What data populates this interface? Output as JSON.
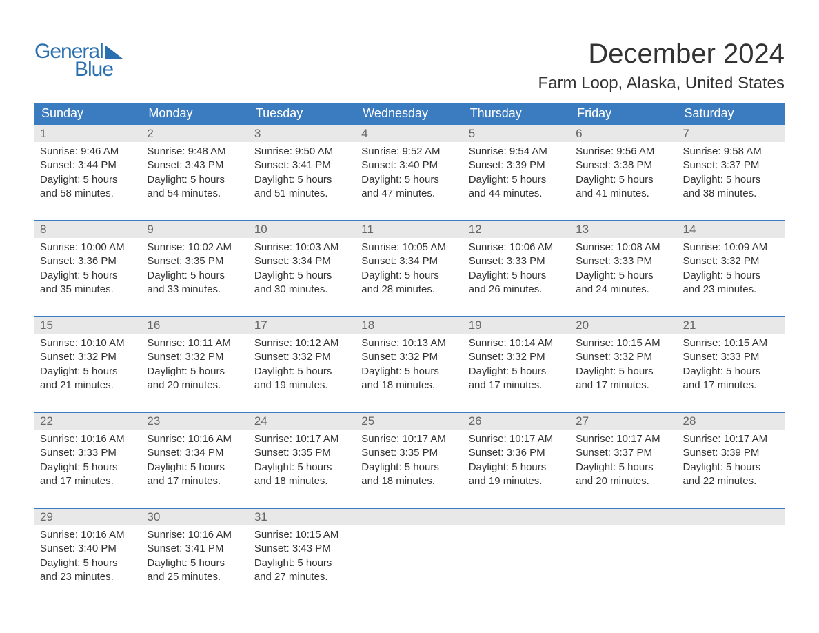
{
  "brand": {
    "line1": "General",
    "line2": "Blue",
    "icon_color": "#2a6fb0",
    "text_color": "#2a6fb0"
  },
  "title": "December 2024",
  "location": "Farm Loop, Alaska, United States",
  "colors": {
    "header_bg": "#3b7bbf",
    "header_text": "#ffffff",
    "daynum_bg": "#e8e8e8",
    "daynum_text": "#666666",
    "cell_border": "#3b7bbf",
    "body_text": "#333333",
    "page_bg": "#ffffff"
  },
  "typography": {
    "title_fontsize": 40,
    "location_fontsize": 24,
    "dayhead_fontsize": 18,
    "daynum_fontsize": 17,
    "body_fontsize": 15,
    "font_family": "Arial"
  },
  "day_headers": [
    "Sunday",
    "Monday",
    "Tuesday",
    "Wednesday",
    "Thursday",
    "Friday",
    "Saturday"
  ],
  "weeks": [
    [
      {
        "num": "1",
        "sunrise": "Sunrise: 9:46 AM",
        "sunset": "Sunset: 3:44 PM",
        "day1": "Daylight: 5 hours",
        "day2": "and 58 minutes."
      },
      {
        "num": "2",
        "sunrise": "Sunrise: 9:48 AM",
        "sunset": "Sunset: 3:43 PM",
        "day1": "Daylight: 5 hours",
        "day2": "and 54 minutes."
      },
      {
        "num": "3",
        "sunrise": "Sunrise: 9:50 AM",
        "sunset": "Sunset: 3:41 PM",
        "day1": "Daylight: 5 hours",
        "day2": "and 51 minutes."
      },
      {
        "num": "4",
        "sunrise": "Sunrise: 9:52 AM",
        "sunset": "Sunset: 3:40 PM",
        "day1": "Daylight: 5 hours",
        "day2": "and 47 minutes."
      },
      {
        "num": "5",
        "sunrise": "Sunrise: 9:54 AM",
        "sunset": "Sunset: 3:39 PM",
        "day1": "Daylight: 5 hours",
        "day2": "and 44 minutes."
      },
      {
        "num": "6",
        "sunrise": "Sunrise: 9:56 AM",
        "sunset": "Sunset: 3:38 PM",
        "day1": "Daylight: 5 hours",
        "day2": "and 41 minutes."
      },
      {
        "num": "7",
        "sunrise": "Sunrise: 9:58 AM",
        "sunset": "Sunset: 3:37 PM",
        "day1": "Daylight: 5 hours",
        "day2": "and 38 minutes."
      }
    ],
    [
      {
        "num": "8",
        "sunrise": "Sunrise: 10:00 AM",
        "sunset": "Sunset: 3:36 PM",
        "day1": "Daylight: 5 hours",
        "day2": "and 35 minutes."
      },
      {
        "num": "9",
        "sunrise": "Sunrise: 10:02 AM",
        "sunset": "Sunset: 3:35 PM",
        "day1": "Daylight: 5 hours",
        "day2": "and 33 minutes."
      },
      {
        "num": "10",
        "sunrise": "Sunrise: 10:03 AM",
        "sunset": "Sunset: 3:34 PM",
        "day1": "Daylight: 5 hours",
        "day2": "and 30 minutes."
      },
      {
        "num": "11",
        "sunrise": "Sunrise: 10:05 AM",
        "sunset": "Sunset: 3:34 PM",
        "day1": "Daylight: 5 hours",
        "day2": "and 28 minutes."
      },
      {
        "num": "12",
        "sunrise": "Sunrise: 10:06 AM",
        "sunset": "Sunset: 3:33 PM",
        "day1": "Daylight: 5 hours",
        "day2": "and 26 minutes."
      },
      {
        "num": "13",
        "sunrise": "Sunrise: 10:08 AM",
        "sunset": "Sunset: 3:33 PM",
        "day1": "Daylight: 5 hours",
        "day2": "and 24 minutes."
      },
      {
        "num": "14",
        "sunrise": "Sunrise: 10:09 AM",
        "sunset": "Sunset: 3:32 PM",
        "day1": "Daylight: 5 hours",
        "day2": "and 23 minutes."
      }
    ],
    [
      {
        "num": "15",
        "sunrise": "Sunrise: 10:10 AM",
        "sunset": "Sunset: 3:32 PM",
        "day1": "Daylight: 5 hours",
        "day2": "and 21 minutes."
      },
      {
        "num": "16",
        "sunrise": "Sunrise: 10:11 AM",
        "sunset": "Sunset: 3:32 PM",
        "day1": "Daylight: 5 hours",
        "day2": "and 20 minutes."
      },
      {
        "num": "17",
        "sunrise": "Sunrise: 10:12 AM",
        "sunset": "Sunset: 3:32 PM",
        "day1": "Daylight: 5 hours",
        "day2": "and 19 minutes."
      },
      {
        "num": "18",
        "sunrise": "Sunrise: 10:13 AM",
        "sunset": "Sunset: 3:32 PM",
        "day1": "Daylight: 5 hours",
        "day2": "and 18 minutes."
      },
      {
        "num": "19",
        "sunrise": "Sunrise: 10:14 AM",
        "sunset": "Sunset: 3:32 PM",
        "day1": "Daylight: 5 hours",
        "day2": "and 17 minutes."
      },
      {
        "num": "20",
        "sunrise": "Sunrise: 10:15 AM",
        "sunset": "Sunset: 3:32 PM",
        "day1": "Daylight: 5 hours",
        "day2": "and 17 minutes."
      },
      {
        "num": "21",
        "sunrise": "Sunrise: 10:15 AM",
        "sunset": "Sunset: 3:33 PM",
        "day1": "Daylight: 5 hours",
        "day2": "and 17 minutes."
      }
    ],
    [
      {
        "num": "22",
        "sunrise": "Sunrise: 10:16 AM",
        "sunset": "Sunset: 3:33 PM",
        "day1": "Daylight: 5 hours",
        "day2": "and 17 minutes."
      },
      {
        "num": "23",
        "sunrise": "Sunrise: 10:16 AM",
        "sunset": "Sunset: 3:34 PM",
        "day1": "Daylight: 5 hours",
        "day2": "and 17 minutes."
      },
      {
        "num": "24",
        "sunrise": "Sunrise: 10:17 AM",
        "sunset": "Sunset: 3:35 PM",
        "day1": "Daylight: 5 hours",
        "day2": "and 18 minutes."
      },
      {
        "num": "25",
        "sunrise": "Sunrise: 10:17 AM",
        "sunset": "Sunset: 3:35 PM",
        "day1": "Daylight: 5 hours",
        "day2": "and 18 minutes."
      },
      {
        "num": "26",
        "sunrise": "Sunrise: 10:17 AM",
        "sunset": "Sunset: 3:36 PM",
        "day1": "Daylight: 5 hours",
        "day2": "and 19 minutes."
      },
      {
        "num": "27",
        "sunrise": "Sunrise: 10:17 AM",
        "sunset": "Sunset: 3:37 PM",
        "day1": "Daylight: 5 hours",
        "day2": "and 20 minutes."
      },
      {
        "num": "28",
        "sunrise": "Sunrise: 10:17 AM",
        "sunset": "Sunset: 3:39 PM",
        "day1": "Daylight: 5 hours",
        "day2": "and 22 minutes."
      }
    ],
    [
      {
        "num": "29",
        "sunrise": "Sunrise: 10:16 AM",
        "sunset": "Sunset: 3:40 PM",
        "day1": "Daylight: 5 hours",
        "day2": "and 23 minutes."
      },
      {
        "num": "30",
        "sunrise": "Sunrise: 10:16 AM",
        "sunset": "Sunset: 3:41 PM",
        "day1": "Daylight: 5 hours",
        "day2": "and 25 minutes."
      },
      {
        "num": "31",
        "sunrise": "Sunrise: 10:15 AM",
        "sunset": "Sunset: 3:43 PM",
        "day1": "Daylight: 5 hours",
        "day2": "and 27 minutes."
      },
      null,
      null,
      null,
      null
    ]
  ]
}
